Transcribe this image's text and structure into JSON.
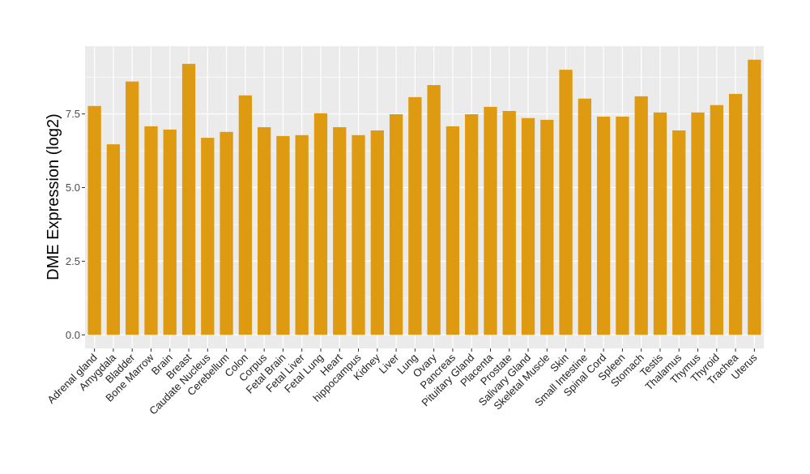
{
  "chart_data": {
    "type": "bar",
    "title": "",
    "xlabel": "",
    "ylabel": "DME Expression (log2)",
    "ylim": [
      -0.46,
      9.8
    ],
    "yticks": [
      0.0,
      2.5,
      5.0,
      7.5
    ],
    "ytick_labels": [
      "0.0",
      "2.5",
      "5.0",
      "7.5"
    ],
    "grid": true,
    "bar_color": "#DE9B12",
    "panel_color": "#EBEBEB",
    "categories": [
      "Adrenal gland",
      "Amygdala",
      "Bladder",
      "Bone Marrow",
      "Brain",
      "Breast",
      "Caudate Nucleus",
      "Cerebellum",
      "Colon",
      "Corpus",
      "Fetal Brain",
      "Fetal Liver",
      "Fetal Lung",
      "Heart",
      "hippocampus",
      "Kidney",
      "Liver",
      "Lung",
      "Ovary",
      "Pancreas",
      "Pituitary Gland",
      "Placenta",
      "Prostate",
      "Salivary Gland",
      "Skeletal Muscle",
      "Skin",
      "Small Intestine",
      "Spinal Cord",
      "Spleen",
      "Stomach",
      "Testis",
      "Thalamus",
      "Thymus",
      "Thyroid",
      "Trachea",
      "Uterus"
    ],
    "values": [
      7.77,
      6.47,
      8.6,
      7.08,
      6.97,
      9.2,
      6.69,
      6.89,
      8.13,
      7.05,
      6.75,
      6.78,
      7.52,
      7.05,
      6.78,
      6.94,
      7.49,
      8.07,
      8.48,
      7.08,
      7.49,
      7.74,
      7.6,
      7.36,
      7.3,
      9.0,
      8.02,
      7.41,
      7.41,
      8.1,
      7.55,
      6.94,
      7.55,
      7.8,
      8.18,
      9.34
    ]
  }
}
